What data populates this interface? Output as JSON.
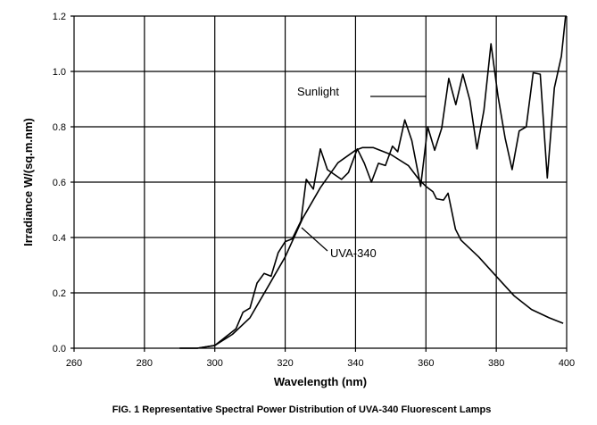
{
  "chart_data": {
    "type": "line",
    "title": "",
    "caption": "FIG. 1 Representative Spectral Power Distribution of UVA-340 Fluorescent Lamps",
    "xlabel": "Wavelength (nm)",
    "ylabel": "Irradiance W/(sq.m.nm)",
    "xlim": [
      260,
      400
    ],
    "ylim": [
      0,
      1.2
    ],
    "xticks": [
      260,
      280,
      300,
      320,
      340,
      360,
      380,
      400
    ],
    "xtick_labels": [
      "260",
      "280",
      "300",
      "320",
      "340",
      "360",
      "380",
      "400"
    ],
    "yticks": [
      0,
      0.2,
      0.4,
      0.6,
      0.8,
      1.0,
      1.2
    ],
    "ytick_labels": [
      "0.0",
      "0.2",
      "0.4",
      "0.6",
      "0.8",
      "1.0",
      "1.2"
    ],
    "grid": true,
    "legend": "none",
    "annotations": [
      "Sunlight",
      "UVA-340"
    ],
    "series": [
      {
        "name": "Sunlight",
        "x": [
          290,
          295,
          300,
          302,
          304,
          306,
          308,
          310,
          312,
          314,
          316,
          318,
          320,
          322,
          324.5,
          326,
          328,
          330,
          332,
          336,
          338,
          340.5,
          342.5,
          344.5,
          346.5,
          348.5,
          350.5,
          352,
          354,
          356,
          358.5,
          360.5,
          362.5,
          364.5,
          366.5,
          368.5,
          370.5,
          372.5,
          374.5,
          376.5,
          378.5,
          380.5,
          382.5,
          384.5,
          386.5,
          388.5,
          390.5,
          392.5,
          394.5,
          396.5,
          398.5,
          399.7
        ],
        "y": [
          0,
          0,
          0.01,
          0.03,
          0.05,
          0.07,
          0.13,
          0.145,
          0.235,
          0.27,
          0.26,
          0.345,
          0.385,
          0.395,
          0.46,
          0.61,
          0.575,
          0.72,
          0.645,
          0.61,
          0.635,
          0.72,
          0.668,
          0.6,
          0.668,
          0.66,
          0.73,
          0.71,
          0.825,
          0.75,
          0.585,
          0.8,
          0.715,
          0.795,
          0.975,
          0.88,
          0.99,
          0.895,
          0.72,
          0.86,
          1.1,
          0.91,
          0.76,
          0.645,
          0.785,
          0.8,
          0.995,
          0.99,
          0.615,
          0.94,
          1.055,
          1.2
        ]
      },
      {
        "name": "UVA-340",
        "x": [
          290,
          295,
          300,
          305,
          310,
          315,
          320,
          325,
          330,
          335,
          340,
          342,
          345,
          350,
          355,
          358,
          360,
          362,
          363,
          365,
          366.3,
          368.4,
          370,
          375,
          380,
          385,
          390,
          395,
          399
        ],
        "y": [
          0,
          0,
          0.01,
          0.05,
          0.11,
          0.22,
          0.33,
          0.47,
          0.58,
          0.67,
          0.715,
          0.725,
          0.725,
          0.7,
          0.66,
          0.61,
          0.585,
          0.565,
          0.54,
          0.535,
          0.56,
          0.43,
          0.39,
          0.33,
          0.26,
          0.19,
          0.14,
          0.11,
          0.09
        ]
      }
    ]
  }
}
